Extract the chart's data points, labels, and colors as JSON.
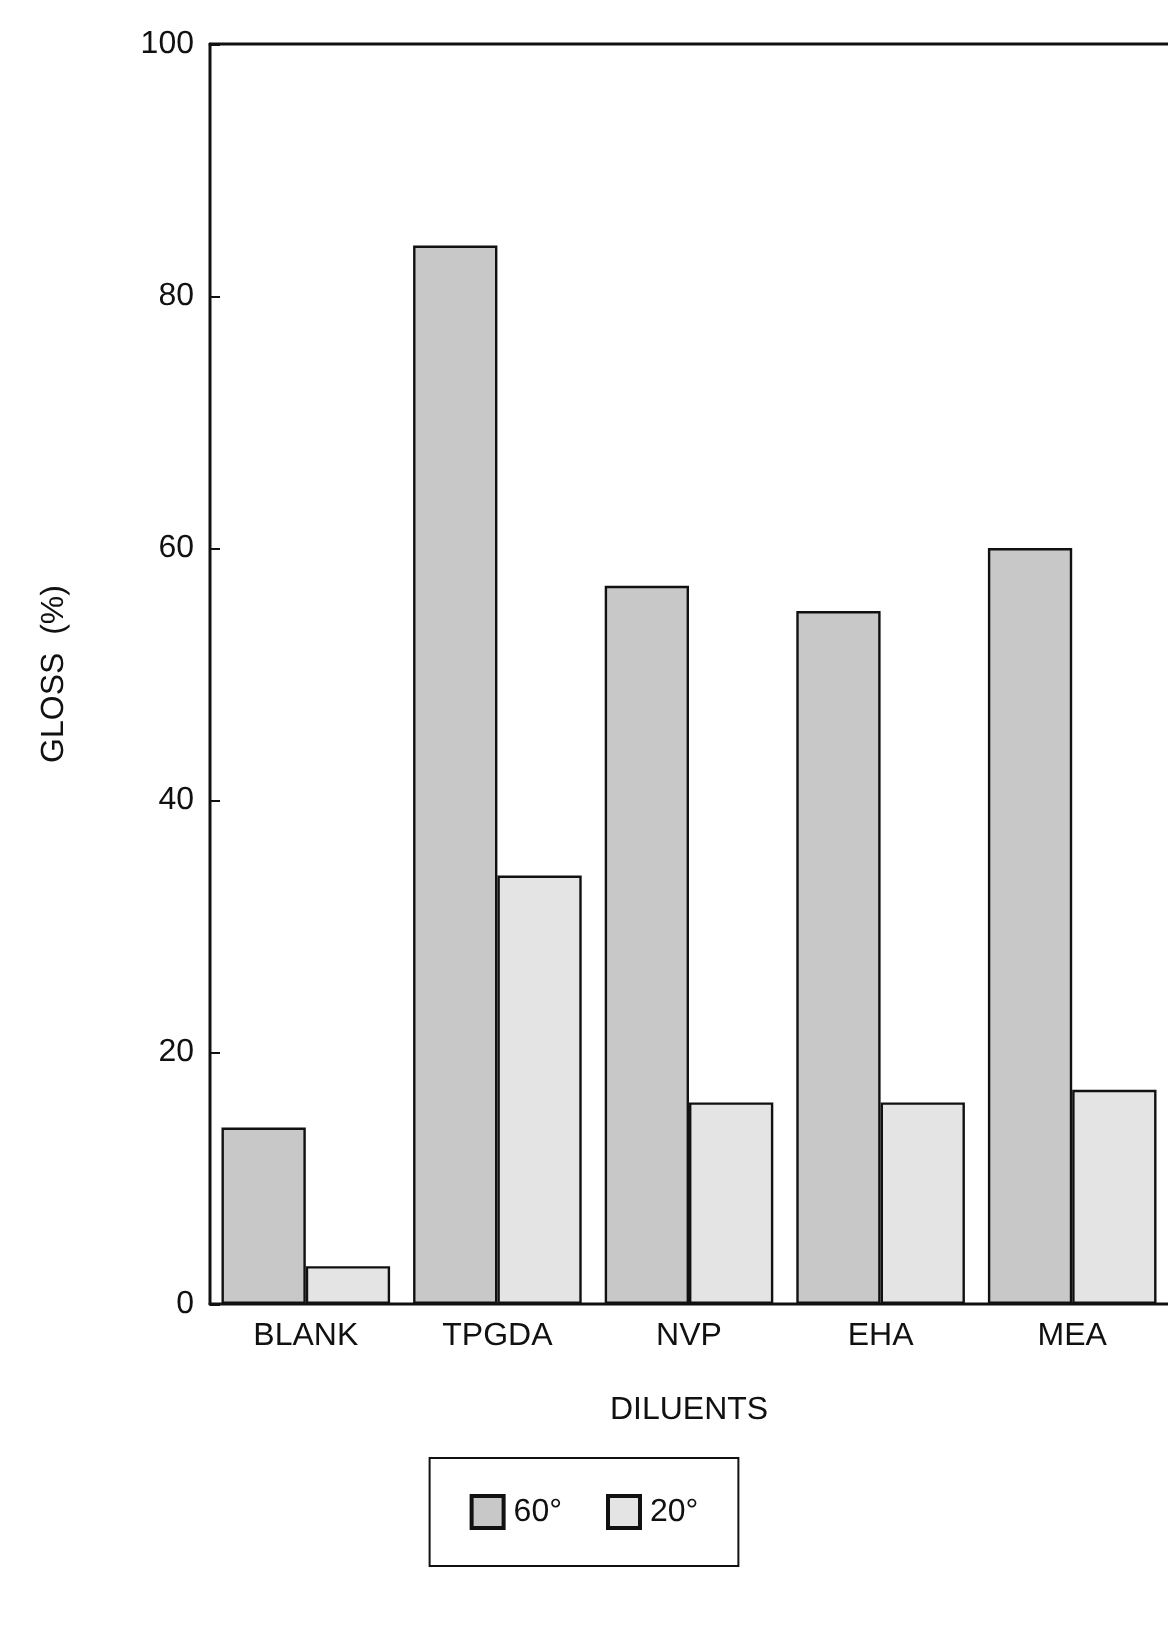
{
  "chart_data": {
    "type": "bar",
    "xlabel": "DILUENTS",
    "ylabel": "GLOSS  (%)",
    "categories": [
      "BLANK",
      "TPGDA",
      "NVP",
      "EHA",
      "MEA"
    ],
    "series": [
      {
        "name": "60°",
        "color": "#c8c8c8",
        "values": [
          14,
          84,
          57,
          55,
          60
        ]
      },
      {
        "name": "20°",
        "color": "#e4e4e4",
        "values": [
          3,
          34,
          16,
          16,
          17
        ]
      }
    ],
    "ylim": [
      0,
      100
    ],
    "yticks": [
      0,
      20,
      40,
      60,
      80,
      100
    ],
    "grid": false,
    "legend": "bottom"
  }
}
